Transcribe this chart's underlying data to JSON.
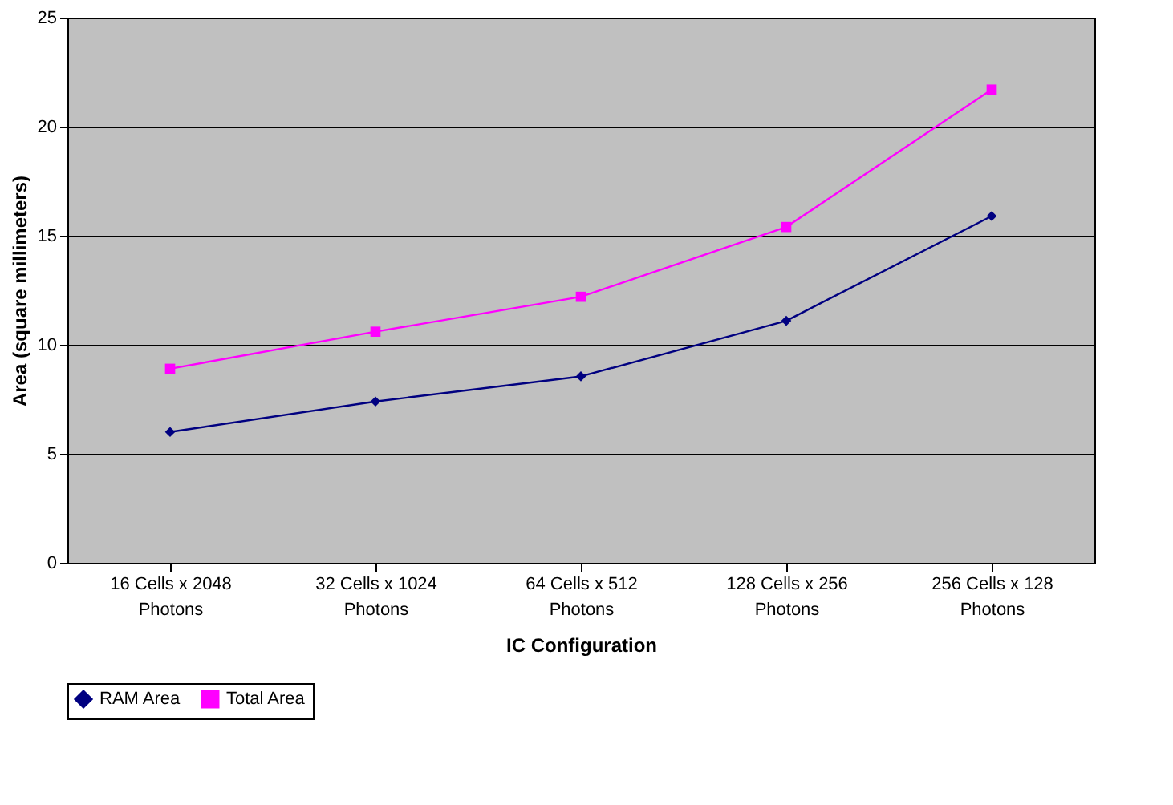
{
  "chart_data": {
    "type": "line",
    "xlabel": "IC Configuration",
    "ylabel": "Area (square millimeters)",
    "categories": [
      "16 Cells x 2048 Photons",
      "32 Cells x 1024 Photons",
      "64 Cells x 512 Photons",
      "128 Cells x 256 Photons",
      "256 Cells x 128 Photons"
    ],
    "series": [
      {
        "name": "RAM Area",
        "color": "#000080",
        "marker": "diamond",
        "values": [
          6.0,
          7.4,
          8.55,
          11.1,
          15.9
        ]
      },
      {
        "name": "Total Area",
        "color": "#ff00ff",
        "marker": "square",
        "values": [
          8.9,
          10.6,
          12.2,
          15.4,
          21.7
        ]
      }
    ],
    "ylim": [
      0,
      25
    ],
    "yticks": [
      0,
      5,
      10,
      15,
      20,
      25
    ],
    "grid": "y",
    "legend": "bottom",
    "line_style": "solid"
  }
}
